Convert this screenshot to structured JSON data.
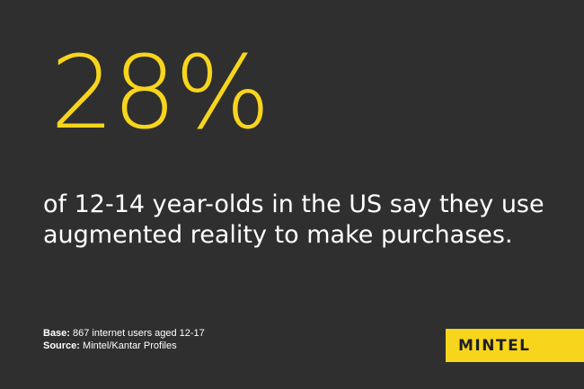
{
  "stat": {
    "value": "28%"
  },
  "headline": {
    "line1": "of 12-14 year-olds in the US say they use",
    "line2": "augmented reality to make purchases."
  },
  "footnote": {
    "base_label": "Base:",
    "base_text": " 867 internet users aged 12-17",
    "source_label": "Source:",
    "source_text": " Mintel/Kantar Profiles"
  },
  "brand": {
    "name": "MINTEL"
  },
  "colors": {
    "background": "#2f2f2f",
    "accent": "#f7d51d",
    "text": "#ffffff"
  }
}
